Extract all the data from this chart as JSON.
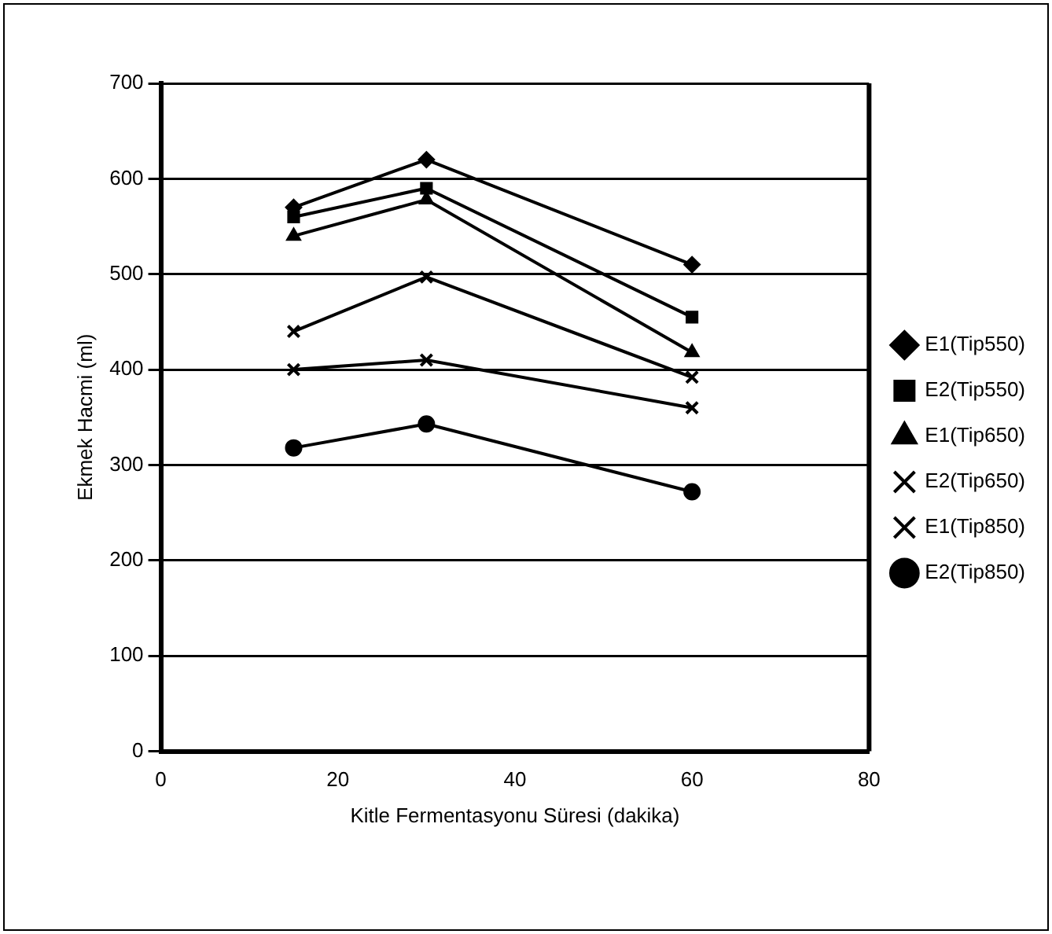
{
  "chart_data": {
    "type": "line",
    "xlabel": "Kitle Fermentasyonu Süresi (dakika)",
    "ylabel": "Ekmek Hacmi (ml)",
    "x": [
      15,
      30,
      60
    ],
    "series": [
      {
        "name": "E1(Tip550)",
        "color": "#000000",
        "marker": "diamond",
        "values": [
          570,
          620,
          510
        ]
      },
      {
        "name": "E2(Tip550)",
        "color": "#000000",
        "marker": "square",
        "values": [
          560,
          590,
          455
        ]
      },
      {
        "name": "E1(Tip650)",
        "color": "#000000",
        "marker": "triangle",
        "values": [
          540,
          578,
          418
        ]
      },
      {
        "name": "E2(Tip650)",
        "color": "#000000",
        "marker": "cross",
        "values": [
          440,
          497,
          392
        ]
      },
      {
        "name": "E1(Tip850)",
        "color": "#000000",
        "marker": "cross",
        "values": [
          400,
          410,
          360
        ]
      },
      {
        "name": "E2(Tip850)",
        "color": "#000000",
        "marker": "circle",
        "values": [
          318,
          343,
          272
        ]
      }
    ],
    "xlim": [
      0,
      80
    ],
    "xticks": [
      0,
      20,
      40,
      60,
      80
    ],
    "ylim": [
      0,
      700
    ],
    "yticks": [
      0,
      100,
      200,
      300,
      400,
      500,
      600,
      700
    ],
    "grid": "y",
    "legend": "right",
    "line_style": "solid"
  }
}
